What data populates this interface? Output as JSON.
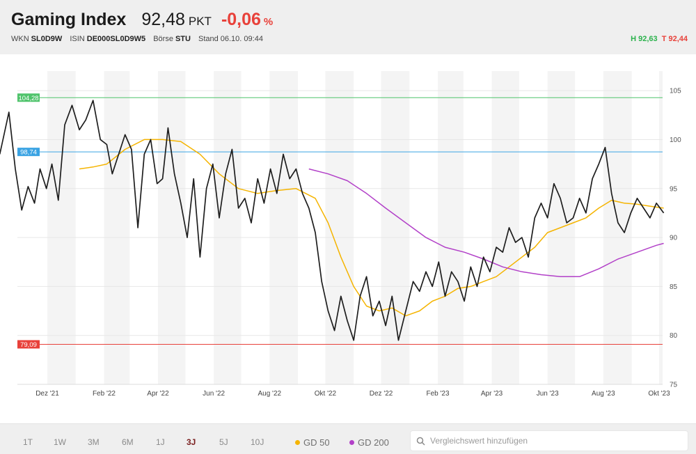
{
  "header": {
    "title": "Gaming Index",
    "price": "92,48",
    "price_unit": "PKT",
    "change": "-0,06",
    "change_unit": "%",
    "meta": [
      {
        "label": "WKN",
        "value": "SL0D9W"
      },
      {
        "label": "ISIN",
        "value": "DE000SL0D9W5"
      },
      {
        "label": "Börse",
        "value": "STU"
      },
      {
        "label": "Stand",
        "value": "06.10. 09:44"
      }
    ],
    "high": "H 92,63",
    "low": "T 92,44"
  },
  "footer": {
    "ranges": [
      "1T",
      "1W",
      "3M",
      "6M",
      "1J",
      "3J",
      "5J",
      "10J"
    ],
    "active_range": "3J",
    "legend": [
      {
        "label": "GD 50",
        "color": "#f5b400"
      },
      {
        "label": "GD 200",
        "color": "#b240c8"
      }
    ],
    "search_placeholder": "Vergleichswert hinzufügen"
  },
  "chart_data": {
    "type": "line",
    "ylim": [
      75,
      107
    ],
    "y_ticks": [
      75,
      80,
      85,
      90,
      95,
      100,
      105
    ],
    "x_ticks": [
      "Dez '21",
      "Feb '22",
      "Apr '22",
      "Jun '22",
      "Aug '22",
      "Okt '22",
      "Dez '22",
      "Feb '23",
      "Apr '23",
      "Jun '23",
      "Aug '23",
      "Okt '23"
    ],
    "reference_lines": [
      {
        "label": "104,28",
        "value": 104.28,
        "color": "#4fc36b"
      },
      {
        "label": "98,74",
        "value": 98.74,
        "color": "#3aa3e3"
      },
      {
        "label": "79,09",
        "value": 79.09,
        "color": "#e8413a"
      }
    ],
    "series": [
      {
        "color": "#1e1e1e",
        "x": [
          "2021-10-10",
          "2021-10-20",
          "2021-10-27",
          "2021-11-03",
          "2021-11-10",
          "2021-11-17",
          "2021-11-23",
          "2021-11-30",
          "2021-12-06",
          "2021-12-13",
          "2021-12-20",
          "2021-12-28",
          "2022-01-05",
          "2022-01-12",
          "2022-01-20",
          "2022-01-28",
          "2022-02-04",
          "2022-02-10",
          "2022-02-17",
          "2022-02-24",
          "2022-03-03",
          "2022-03-10",
          "2022-03-17",
          "2022-03-24",
          "2022-03-31",
          "2022-04-06",
          "2022-04-12",
          "2022-04-19",
          "2022-04-26",
          "2022-05-03",
          "2022-05-10",
          "2022-05-17",
          "2022-05-24",
          "2022-05-31",
          "2022-06-07",
          "2022-06-14",
          "2022-06-21",
          "2022-06-28",
          "2022-07-05",
          "2022-07-12",
          "2022-07-19",
          "2022-07-26",
          "2022-08-02",
          "2022-08-09",
          "2022-08-16",
          "2022-08-23",
          "2022-08-30",
          "2022-09-06",
          "2022-09-13",
          "2022-09-20",
          "2022-09-27",
          "2022-10-04",
          "2022-10-11",
          "2022-10-18",
          "2022-10-25",
          "2022-11-01",
          "2022-11-08",
          "2022-11-15",
          "2022-11-22",
          "2022-11-29",
          "2022-12-06",
          "2022-12-13",
          "2022-12-20",
          "2022-12-28",
          "2023-01-05",
          "2023-01-12",
          "2023-01-19",
          "2023-01-26",
          "2023-02-02",
          "2023-02-09",
          "2023-02-16",
          "2023-02-23",
          "2023-03-02",
          "2023-03-09",
          "2023-03-16",
          "2023-03-23",
          "2023-03-30",
          "2023-04-06",
          "2023-04-13",
          "2023-04-20",
          "2023-04-27",
          "2023-05-04",
          "2023-05-11",
          "2023-05-18",
          "2023-05-25",
          "2023-06-01",
          "2023-06-08",
          "2023-06-15",
          "2023-06-22",
          "2023-06-29",
          "2023-07-06",
          "2023-07-13",
          "2023-07-20",
          "2023-07-27",
          "2023-08-03",
          "2023-08-10",
          "2023-08-17",
          "2023-08-24",
          "2023-08-31",
          "2023-09-07",
          "2023-09-14",
          "2023-09-21",
          "2023-09-28",
          "2023-10-06"
        ],
        "values": [
          98.5,
          102.8,
          97.0,
          92.8,
          95.2,
          93.5,
          97.0,
          95.0,
          97.5,
          93.8,
          101.5,
          103.5,
          101.0,
          102.0,
          104.0,
          100.0,
          99.5,
          96.5,
          98.5,
          100.5,
          99.0,
          91.0,
          98.5,
          100.0,
          95.5,
          96.0,
          101.2,
          96.5,
          93.5,
          90.0,
          96.0,
          88.0,
          95.0,
          97.5,
          92.0,
          96.5,
          99.0,
          93.0,
          94.0,
          91.5,
          96.0,
          93.5,
          97.0,
          94.5,
          98.5,
          96.0,
          97.0,
          94.5,
          93.0,
          90.5,
          85.5,
          82.5,
          80.5,
          84.0,
          81.5,
          79.5,
          84.0,
          86.0,
          82.0,
          83.5,
          81.0,
          84.0,
          79.5,
          82.5,
          85.5,
          84.5,
          86.5,
          85.0,
          87.5,
          84.0,
          86.5,
          85.5,
          83.5,
          87.0,
          85.0,
          88.0,
          86.5,
          89.0,
          88.5,
          91.0,
          89.5,
          90.0,
          88.0,
          92.0,
          93.5,
          92.0,
          95.5,
          94.0,
          91.5,
          92.0,
          94.0,
          92.5,
          96.0,
          97.5,
          99.2,
          94.5,
          91.5,
          90.5,
          92.5,
          94.0,
          93.0,
          92.0,
          93.5,
          92.5
        ]
      },
      {
        "name": "GD 50",
        "color": "#f5b400",
        "x": [
          "2022-01-05",
          "2022-01-20",
          "2022-02-04",
          "2022-02-24",
          "2022-03-17",
          "2022-04-06",
          "2022-04-26",
          "2022-05-17",
          "2022-06-07",
          "2022-06-28",
          "2022-07-19",
          "2022-08-09",
          "2022-08-30",
          "2022-09-20",
          "2022-10-04",
          "2022-10-18",
          "2022-11-01",
          "2022-11-15",
          "2022-11-29",
          "2022-12-13",
          "2022-12-28",
          "2023-01-12",
          "2023-01-26",
          "2023-02-09",
          "2023-02-23",
          "2023-03-09",
          "2023-03-23",
          "2023-04-06",
          "2023-04-20",
          "2023-05-04",
          "2023-05-18",
          "2023-06-01",
          "2023-06-15",
          "2023-06-29",
          "2023-07-13",
          "2023-07-27",
          "2023-08-10",
          "2023-08-24",
          "2023-09-07",
          "2023-09-21",
          "2023-10-06"
        ],
        "values": [
          97.0,
          97.2,
          97.5,
          99.0,
          100.0,
          100.0,
          99.8,
          98.5,
          96.5,
          95.0,
          94.5,
          94.8,
          95.0,
          94.0,
          91.5,
          88.0,
          85.0,
          83.0,
          82.5,
          82.8,
          82.0,
          82.5,
          83.5,
          84.0,
          84.8,
          85.0,
          85.5,
          86.0,
          87.0,
          88.0,
          89.0,
          90.5,
          91.0,
          91.5,
          92.0,
          93.0,
          93.8,
          93.5,
          93.4,
          93.2,
          93.0
        ]
      },
      {
        "name": "GD 200",
        "color": "#b240c8",
        "x": [
          "2022-09-13",
          "2022-10-04",
          "2022-10-25",
          "2022-11-15",
          "2022-12-06",
          "2022-12-28",
          "2023-01-19",
          "2023-02-09",
          "2023-03-02",
          "2023-03-23",
          "2023-04-13",
          "2023-05-04",
          "2023-05-25",
          "2023-06-15",
          "2023-07-06",
          "2023-07-27",
          "2023-08-17",
          "2023-09-07",
          "2023-09-28",
          "2023-10-06"
        ],
        "values": [
          97.0,
          96.5,
          95.8,
          94.5,
          93.0,
          91.5,
          90.0,
          89.0,
          88.5,
          87.8,
          87.0,
          86.5,
          86.2,
          86.0,
          86.0,
          86.8,
          87.8,
          88.5,
          89.2,
          89.4
        ]
      }
    ]
  }
}
